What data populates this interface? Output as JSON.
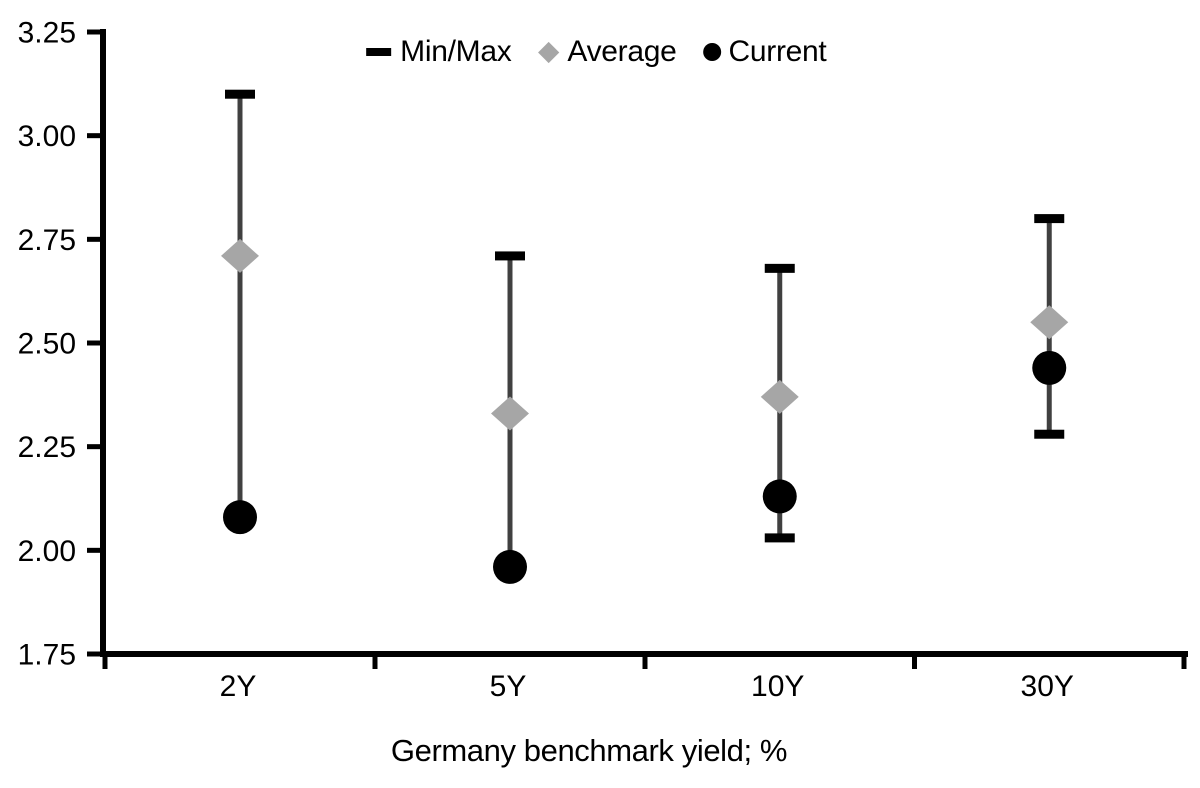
{
  "legend": {
    "items": [
      {
        "id": "minmax",
        "label": "Min/Max"
      },
      {
        "id": "average",
        "label": "Average"
      },
      {
        "id": "current",
        "label": "Current"
      }
    ]
  },
  "axis": {
    "x_title": "Germany benchmark yield; %",
    "y_tick_labels": [
      "3.25",
      "3.00",
      "2.75",
      "2.50",
      "2.25",
      "2.00",
      "1.75"
    ]
  },
  "chart_data": {
    "type": "scatter",
    "subtype": "min-max-range-with-average-and-current-markers",
    "title": "",
    "xlabel": "Germany benchmark yield; %",
    "ylabel": "",
    "categories": [
      "2Y",
      "5Y",
      "10Y",
      "30Y"
    ],
    "series": [
      {
        "name": "Min/Max",
        "marker": "range-whisker",
        "min": [
          2.08,
          1.96,
          2.03,
          2.28
        ],
        "max": [
          3.1,
          2.71,
          2.68,
          2.8
        ]
      },
      {
        "name": "Average",
        "marker": "diamond",
        "values": [
          2.71,
          2.33,
          2.37,
          2.55
        ]
      },
      {
        "name": "Current",
        "marker": "circle",
        "values": [
          2.08,
          1.96,
          2.13,
          2.44
        ]
      }
    ],
    "ylim": [
      1.75,
      3.25
    ],
    "y_tick_step": 0.25,
    "grid": false,
    "legend_position": "top-center",
    "colors": {
      "axis": "#000000",
      "text": "#000000",
      "range_line": "#404040",
      "range_cap": "#000000",
      "average": "#a6a6a6",
      "current": "#000000"
    }
  }
}
